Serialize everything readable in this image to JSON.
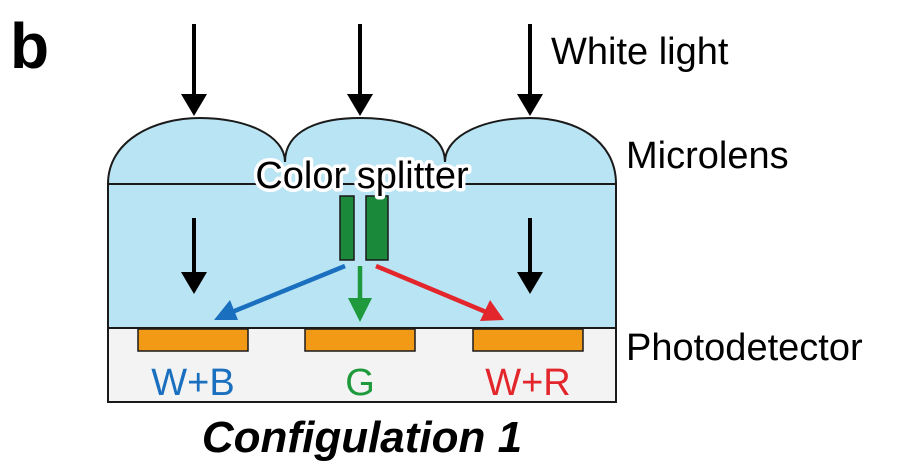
{
  "panel_letter": "b",
  "labels": {
    "white_light": "White light",
    "microlens": "Microlens",
    "color_splitter": "Color splitter",
    "photodetector": "Photodetector"
  },
  "pixels": [
    {
      "label": "W+B",
      "color": "#1a6fbf"
    },
    {
      "label": "G",
      "color": "#1e9a3c"
    },
    {
      "label": "W+R",
      "color": "#e3262c"
    }
  ],
  "caption": "Configulation 1",
  "colors": {
    "lens_fill": "#b9e4f4",
    "photodetector_pad": "#f29a16",
    "splitter_fill": "#1a8a3a",
    "substrate": "#f3f3f3",
    "outline": "#1a1a1a"
  }
}
